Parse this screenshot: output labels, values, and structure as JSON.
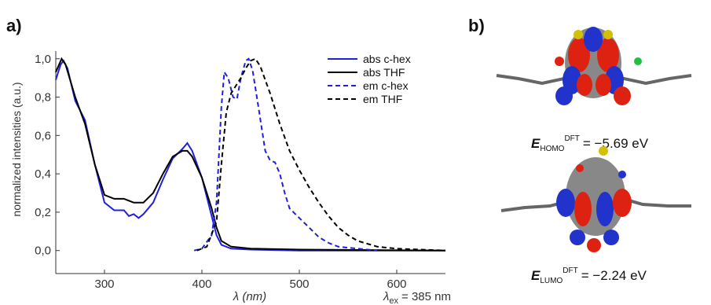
{
  "chart_data": {
    "type": "line",
    "panel_label": "a)",
    "ylabel": "normalized intensities (a.u.)",
    "xlabel": "λ (nm)",
    "annotation": {
      "symbol": "λ",
      "sub": "ex",
      "text": "= 385 nm"
    },
    "xlim": [
      250,
      650
    ],
    "xticks": [
      300,
      400,
      500,
      600
    ],
    "ylim": [
      -0.12,
      1.04
    ],
    "yticks": [
      {
        "value": 0,
        "label": "0,0"
      },
      {
        "value": 0.2,
        "label": "0,2"
      },
      {
        "value": 0.4,
        "label": "0,4"
      },
      {
        "value": 0.6,
        "label": "0,6"
      },
      {
        "value": 0.8,
        "label": "0,8"
      },
      {
        "value": 1.0,
        "label": "1,0"
      }
    ],
    "legend": "upper right",
    "series": [
      {
        "name": "abs c-hex",
        "color": "#1f1fe0",
        "dash": false,
        "x": [
          250,
          255,
          258,
          262,
          270,
          280,
          290,
          300,
          310,
          320,
          325,
          330,
          335,
          340,
          350,
          360,
          370,
          380,
          385,
          390,
          400,
          410,
          415,
          420,
          430,
          450,
          500,
          650
        ],
        "values": [
          0.89,
          0.97,
          0.99,
          0.95,
          0.78,
          0.68,
          0.45,
          0.25,
          0.21,
          0.21,
          0.18,
          0.19,
          0.17,
          0.19,
          0.25,
          0.37,
          0.48,
          0.53,
          0.56,
          0.52,
          0.38,
          0.18,
          0.08,
          0.03,
          0.01,
          0.005,
          0,
          0
        ]
      },
      {
        "name": "abs THF",
        "color": "#000000",
        "dash": false,
        "x": [
          250,
          256,
          260,
          270,
          280,
          290,
          300,
          310,
          320,
          330,
          340,
          350,
          360,
          370,
          380,
          385,
          390,
          400,
          410,
          415,
          420,
          430,
          450,
          500,
          650
        ],
        "values": [
          0.93,
          1.0,
          0.97,
          0.8,
          0.66,
          0.45,
          0.29,
          0.27,
          0.27,
          0.25,
          0.25,
          0.3,
          0.4,
          0.49,
          0.52,
          0.52,
          0.49,
          0.38,
          0.22,
          0.12,
          0.05,
          0.02,
          0.01,
          0.005,
          0
        ]
      },
      {
        "name": "em c-hex",
        "color": "#1f1fe0",
        "dash": true,
        "x": [
          392,
          400,
          410,
          415,
          420,
          423,
          427,
          432,
          436,
          440,
          445,
          448,
          452,
          458,
          465,
          470,
          475,
          480,
          485,
          490,
          500,
          510,
          520,
          530,
          540,
          560,
          580
        ],
        "values": [
          0,
          0.01,
          0.08,
          0.25,
          0.75,
          0.93,
          0.9,
          0.8,
          0.79,
          0.9,
          0.99,
          1.0,
          0.94,
          0.75,
          0.52,
          0.47,
          0.46,
          0.4,
          0.3,
          0.22,
          0.17,
          0.12,
          0.07,
          0.04,
          0.02,
          0.01,
          0
        ]
      },
      {
        "name": "em THF",
        "color": "#000000",
        "dash": true,
        "x": [
          395,
          405,
          415,
          420,
          425,
          430,
          435,
          440,
          445,
          450,
          455,
          460,
          470,
          480,
          490,
          500,
          510,
          520,
          530,
          540,
          550,
          560,
          580,
          600,
          650
        ],
        "values": [
          0,
          0.02,
          0.15,
          0.45,
          0.72,
          0.82,
          0.86,
          0.9,
          0.95,
          0.99,
          1.0,
          0.96,
          0.82,
          0.66,
          0.52,
          0.42,
          0.33,
          0.25,
          0.18,
          0.12,
          0.08,
          0.05,
          0.02,
          0.01,
          0
        ]
      }
    ]
  },
  "figure_b": {
    "panel_label": "b)",
    "energies": [
      {
        "symbol": "E",
        "sub": "HOMO",
        "sup": "DFT",
        "text": "= −5.69 eV"
      },
      {
        "symbol": "E",
        "sub": "LUMO",
        "sup": "DFT",
        "text": "= −2.24 eV"
      }
    ]
  }
}
